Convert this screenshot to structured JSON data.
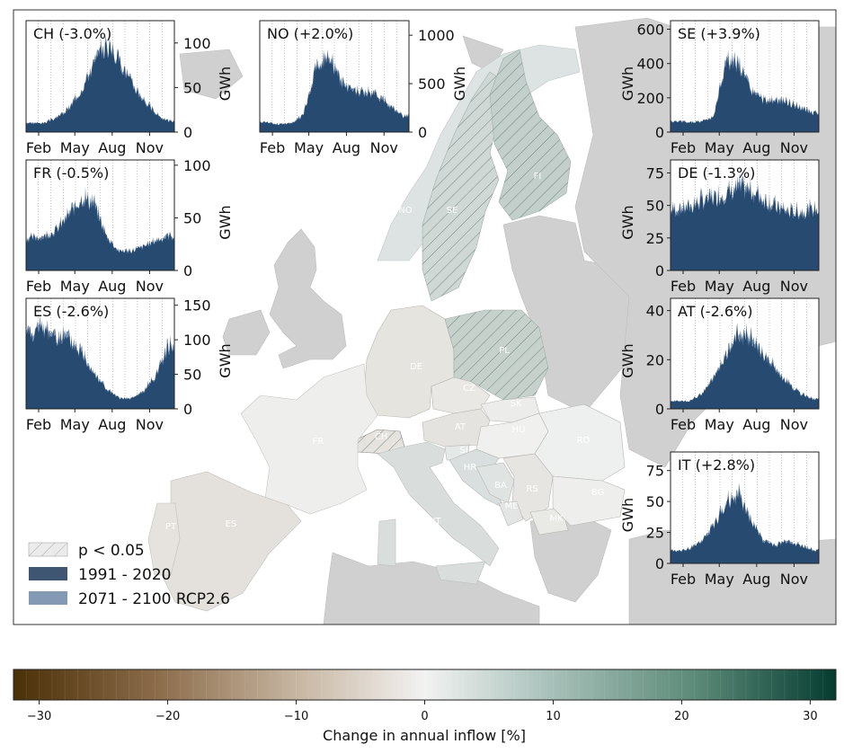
{
  "map": {
    "country_labels": [
      "NO",
      "SE",
      "FI",
      "DE",
      "PL",
      "CZ",
      "SK",
      "AT",
      "CH",
      "FR",
      "HU",
      "RO",
      "SI",
      "HR",
      "BA",
      "RS",
      "BG",
      "ME",
      "MK",
      "IT",
      "ES",
      "PT"
    ],
    "colors": {
      "sea": "#ffffff",
      "land_nodata": "#d0d0d0",
      "nordic_no": "#dde3e2",
      "se": "#cfd8d5",
      "fi": "#c2cfca",
      "pl": "#c6d1cc",
      "de": "#e6e4df",
      "fr": "#eeeeec",
      "es": "#e4e1dc",
      "it": "#d9dedd",
      "hatch": "#5b6d67"
    }
  },
  "legend": {
    "items": [
      {
        "label": "p < 0.05",
        "kind": "hatch",
        "color": "#dcdcdc"
      },
      {
        "label": "1991 - 2020",
        "kind": "fill",
        "color": "#3f5673"
      },
      {
        "label": "2071 - 2100 RCP2.6",
        "kind": "fill",
        "color": "#8499b3"
      }
    ]
  },
  "colorbar": {
    "label": "Change in annual inflow [%]",
    "range": [
      -32,
      32
    ],
    "ticks": [
      -30,
      -20,
      -10,
      0,
      10,
      20,
      30
    ],
    "tick_labels": [
      "−30",
      "−20",
      "−10",
      "0",
      "10",
      "20",
      "30"
    ],
    "stops": [
      "#4a3007",
      "#8a6a48",
      "#c8b8a4",
      "#f2f2f2",
      "#a9c1ba",
      "#5c8a78",
      "#053c30"
    ]
  },
  "chart_data": [
    {
      "type": "area",
      "title": "CH (-3.0%)",
      "ylabel": "GWh",
      "xtick_labels": [
        "Feb",
        "May",
        "Aug",
        "Nov"
      ],
      "ylim": [
        0,
        125
      ],
      "yticks": [
        0,
        50,
        100
      ],
      "ytick_labels": [
        "0",
        "50",
        "100"
      ],
      "profile": {
        "month": [
          1,
          2,
          3,
          4,
          5,
          6,
          7,
          8,
          9,
          10,
          11,
          12
        ],
        "value": [
          10,
          10,
          16,
          26,
          48,
          75,
          96,
          82,
          55,
          36,
          20,
          12
        ]
      },
      "series": [
        {
          "name": "1991 - 2020",
          "color": "#21446b"
        },
        {
          "name": "2071 - 2100 RCP2.6",
          "color": "#6a84a3"
        }
      ]
    },
    {
      "type": "area",
      "title": "NO (+2.0%)",
      "ylabel": "GWh",
      "xtick_labels": [
        "Feb",
        "May",
        "Aug",
        "Nov"
      ],
      "ylim": [
        0,
        1150
      ],
      "yticks": [
        0,
        500,
        1000
      ],
      "ytick_labels": [
        "0",
        "500",
        "1000"
      ],
      "profile": {
        "month": [
          1,
          2,
          3,
          4,
          5,
          6,
          7,
          8,
          9,
          10,
          11,
          12
        ],
        "value": [
          100,
          80,
          90,
          170,
          640,
          780,
          520,
          410,
          400,
          370,
          260,
          160
        ]
      },
      "series": [
        {
          "name": "1991 - 2020",
          "color": "#21446b"
        },
        {
          "name": "2071 - 2100 RCP2.6",
          "color": "#6a84a3"
        }
      ]
    },
    {
      "type": "area",
      "title": "SE (+3.9%)",
      "ylabel": "GWh",
      "xtick_labels": [
        "Feb",
        "May",
        "Aug",
        "Nov"
      ],
      "ylim": [
        0,
        650
      ],
      "yticks": [
        0,
        200,
        400,
        600
      ],
      "ytick_labels": [
        "0",
        "200",
        "400",
        "600"
      ],
      "profile": {
        "month": [
          1,
          2,
          3,
          4,
          5,
          6,
          7,
          8,
          9,
          10,
          11,
          12
        ],
        "value": [
          60,
          55,
          60,
          90,
          410,
          390,
          240,
          180,
          180,
          170,
          140,
          110
        ]
      },
      "series": [
        {
          "name": "1991 - 2020",
          "color": "#21446b"
        },
        {
          "name": "2071 - 2100 RCP2.6",
          "color": "#6a84a3"
        }
      ]
    },
    {
      "type": "area",
      "title": "FR (-0.5%)",
      "ylabel": "GWh",
      "xtick_labels": [
        "Feb",
        "May",
        "Aug",
        "Nov"
      ],
      "ylim": [
        0,
        105
      ],
      "yticks": [
        0,
        50,
        100
      ],
      "ytick_labels": [
        "0",
        "50",
        "100"
      ],
      "profile": {
        "month": [
          1,
          2,
          3,
          4,
          5,
          6,
          7,
          8,
          9,
          10,
          11,
          12
        ],
        "value": [
          30,
          32,
          38,
          52,
          68,
          62,
          32,
          18,
          18,
          22,
          28,
          32
        ]
      },
      "series": [
        {
          "name": "1991 - 2020",
          "color": "#21446b"
        },
        {
          "name": "2071 - 2100 RCP2.6",
          "color": "#6a84a3"
        }
      ]
    },
    {
      "type": "area",
      "title": "DE (-1.3%)",
      "ylabel": "GWh",
      "xtick_labels": [
        "Feb",
        "May",
        "Aug",
        "Nov"
      ],
      "ylim": [
        0,
        85
      ],
      "yticks": [
        0,
        25,
        50,
        75
      ],
      "ytick_labels": [
        "0",
        "25",
        "50",
        "75"
      ],
      "profile": {
        "month": [
          1,
          2,
          3,
          4,
          5,
          6,
          7,
          8,
          9,
          10,
          11,
          12
        ],
        "value": [
          46,
          48,
          52,
          55,
          58,
          62,
          60,
          54,
          48,
          44,
          44,
          46
        ]
      },
      "series": [
        {
          "name": "1991 - 2020",
          "color": "#21446b"
        },
        {
          "name": "2071 - 2100 RCP2.6",
          "color": "#6a84a3"
        }
      ]
    },
    {
      "type": "area",
      "title": "ES (-2.6%)",
      "ylabel": "GWh",
      "xtick_labels": [
        "Feb",
        "May",
        "Aug",
        "Nov"
      ],
      "ylim": [
        0,
        160
      ],
      "yticks": [
        0,
        50,
        100,
        150
      ],
      "ytick_labels": [
        "0",
        "50",
        "100",
        "150"
      ],
      "profile": {
        "month": [
          1,
          2,
          3,
          4,
          5,
          6,
          7,
          8,
          9,
          10,
          11,
          12
        ],
        "value": [
          110,
          112,
          104,
          96,
          80,
          52,
          28,
          15,
          14,
          24,
          48,
          88
        ]
      },
      "series": [
        {
          "name": "1991 - 2020",
          "color": "#21446b"
        },
        {
          "name": "2071 - 2100 RCP2.6",
          "color": "#6a84a3"
        }
      ]
    },
    {
      "type": "area",
      "title": "AT (-2.6%)",
      "ylabel": "GWh",
      "xtick_labels": [
        "Feb",
        "May",
        "Aug",
        "Nov"
      ],
      "ylim": [
        0,
        45
      ],
      "yticks": [
        0,
        20,
        40
      ],
      "ytick_labels": [
        "0",
        "20",
        "40"
      ],
      "profile": {
        "month": [
          1,
          2,
          3,
          4,
          5,
          6,
          7,
          8,
          9,
          10,
          11,
          12
        ],
        "value": [
          3,
          3,
          6,
          12,
          22,
          30,
          28,
          22,
          16,
          10,
          6,
          4
        ]
      },
      "series": [
        {
          "name": "1991 - 2020",
          "color": "#21446b"
        },
        {
          "name": "2071 - 2100 RCP2.6",
          "color": "#6a84a3"
        }
      ]
    },
    {
      "type": "area",
      "title": "IT (+2.8%)",
      "ylabel": "GWh",
      "xtick_labels": [
        "Feb",
        "May",
        "Aug",
        "Nov"
      ],
      "ylim": [
        0,
        90
      ],
      "yticks": [
        0,
        25,
        50,
        75
      ],
      "ytick_labels": [
        "0",
        "25",
        "50",
        "75"
      ],
      "profile": {
        "month": [
          1,
          2,
          3,
          4,
          5,
          6,
          7,
          8,
          9,
          10,
          11,
          12
        ],
        "value": [
          10,
          11,
          18,
          30,
          48,
          55,
          35,
          18,
          14,
          18,
          14,
          11
        ]
      },
      "series": [
        {
          "name": "1991 - 2020",
          "color": "#21446b"
        },
        {
          "name": "2071 - 2100 RCP2.6",
          "color": "#6a84a3"
        }
      ]
    }
  ]
}
